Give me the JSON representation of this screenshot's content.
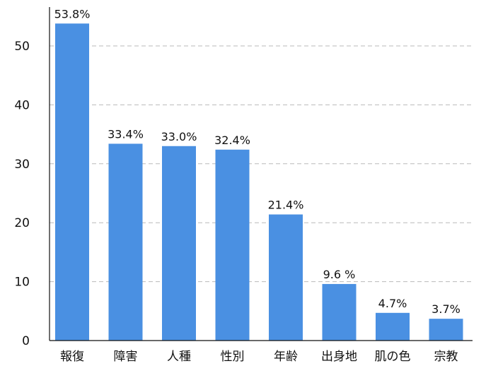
{
  "chart_data": {
    "type": "bar",
    "title": "",
    "xlabel": "",
    "ylabel": "",
    "categories": [
      "報復",
      "障害",
      "人種",
      "性別",
      "年齢",
      "出身地",
      "肌の色",
      "宗教"
    ],
    "values": [
      53.8,
      33.4,
      33.0,
      32.4,
      21.4,
      9.6,
      4.7,
      3.7
    ],
    "data_labels": [
      "53.8%",
      "33.4%",
      "33.0%",
      "32.4%",
      "21.4%",
      "9.6 %",
      "4.7%",
      "3.7%"
    ],
    "ylim": [
      0,
      58
    ],
    "yticks": [
      0,
      10,
      20,
      30,
      40,
      50
    ],
    "grid": "horizontal dashed",
    "legend": "none",
    "bar_color": "#4a90e2",
    "grid_color": "#b9b9b9",
    "axis_color": "#111111"
  }
}
